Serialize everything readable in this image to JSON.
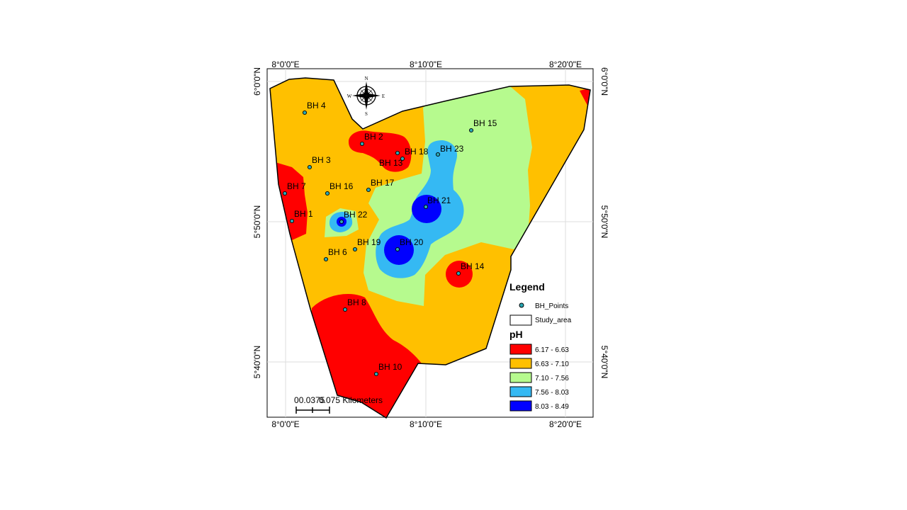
{
  "axes": {
    "top": [
      "8°0'0\"E",
      "8°10'0\"E",
      "8°20'0\"E"
    ],
    "bottom": [
      "8°0'0\"E",
      "8°10'0\"E",
      "8°20'0\"E"
    ],
    "left": [
      "6°0'0\"N",
      "5°50'0\"N",
      "5°40'0\"N"
    ],
    "right": [
      "6°0'0\"N",
      "5°50'0\"N",
      "5°40'0\"N"
    ]
  },
  "compass": {
    "n": "N",
    "s": "S",
    "e": "E",
    "w": "W"
  },
  "boreholes": [
    {
      "label": "BH 4"
    },
    {
      "label": "BH 2"
    },
    {
      "label": "BH 18"
    },
    {
      "label": "BH 13"
    },
    {
      "label": "BH 23"
    },
    {
      "label": "BH 15"
    },
    {
      "label": "BH 3"
    },
    {
      "label": "BH 7"
    },
    {
      "label": "BH 16"
    },
    {
      "label": "BH 17"
    },
    {
      "label": "BH 21"
    },
    {
      "label": "BH 1"
    },
    {
      "label": "BH 22"
    },
    {
      "label": "BH 19"
    },
    {
      "label": "BH 20"
    },
    {
      "label": "BH 6"
    },
    {
      "label": "BH 14"
    },
    {
      "label": "BH 8"
    },
    {
      "label": "BH 10"
    }
  ],
  "legend": {
    "title": "Legend",
    "points_label": "BH_Points",
    "area_label": "Study_area",
    "ph_title": "pH",
    "classes": [
      {
        "range": "6.17 - 6.63",
        "color": "#ff0000"
      },
      {
        "range": "6.63 - 7.10",
        "color": "#ffc000"
      },
      {
        "range": "7.10 - 7.56",
        "color": "#b6fa8e"
      },
      {
        "range": "7.56 - 8.03",
        "color": "#35b9f3"
      },
      {
        "range": "8.03 - 8.49",
        "color": "#0000ff"
      }
    ]
  },
  "scale_bar": {
    "text": "00.0375075 Kilometers",
    "text_parts": [
      "0",
      "0.0375",
      "0.075 Kilometers"
    ]
  }
}
